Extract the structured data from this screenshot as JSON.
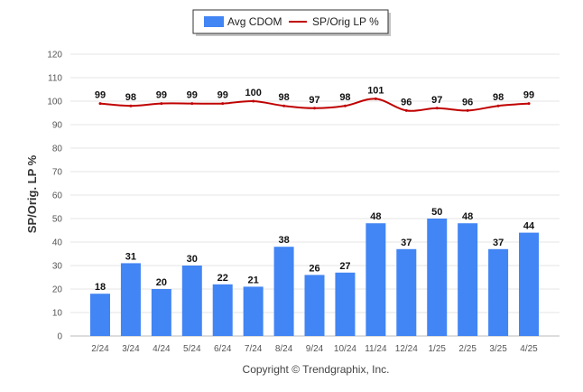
{
  "chart_data": {
    "type": "bar",
    "categories": [
      "2/24",
      "3/24",
      "4/24",
      "5/24",
      "6/24",
      "7/24",
      "8/24",
      "9/24",
      "10/24",
      "11/24",
      "12/24",
      "1/25",
      "2/25",
      "3/25",
      "4/25"
    ],
    "series": [
      {
        "name": "Avg CDOM",
        "type": "bar",
        "color": "#4285F4",
        "values": [
          18,
          31,
          20,
          30,
          22,
          21,
          38,
          26,
          27,
          48,
          37,
          50,
          48,
          37,
          44
        ]
      },
      {
        "name": "SP/Orig LP %",
        "type": "line",
        "color": "#C00000",
        "values": [
          99,
          98,
          99,
          99,
          99,
          100,
          98,
          97,
          98,
          101,
          96,
          97,
          96,
          98,
          99
        ]
      }
    ],
    "ylabel": "SP/Orig. LP %",
    "ylim": [
      0,
      120
    ],
    "yticks": [
      0,
      10,
      20,
      30,
      40,
      50,
      60,
      70,
      80,
      90,
      100,
      110,
      120
    ],
    "grid": true,
    "legend_position": "top-center"
  },
  "footer": {
    "copyright": "Copyright © Trendgraphix, Inc."
  }
}
